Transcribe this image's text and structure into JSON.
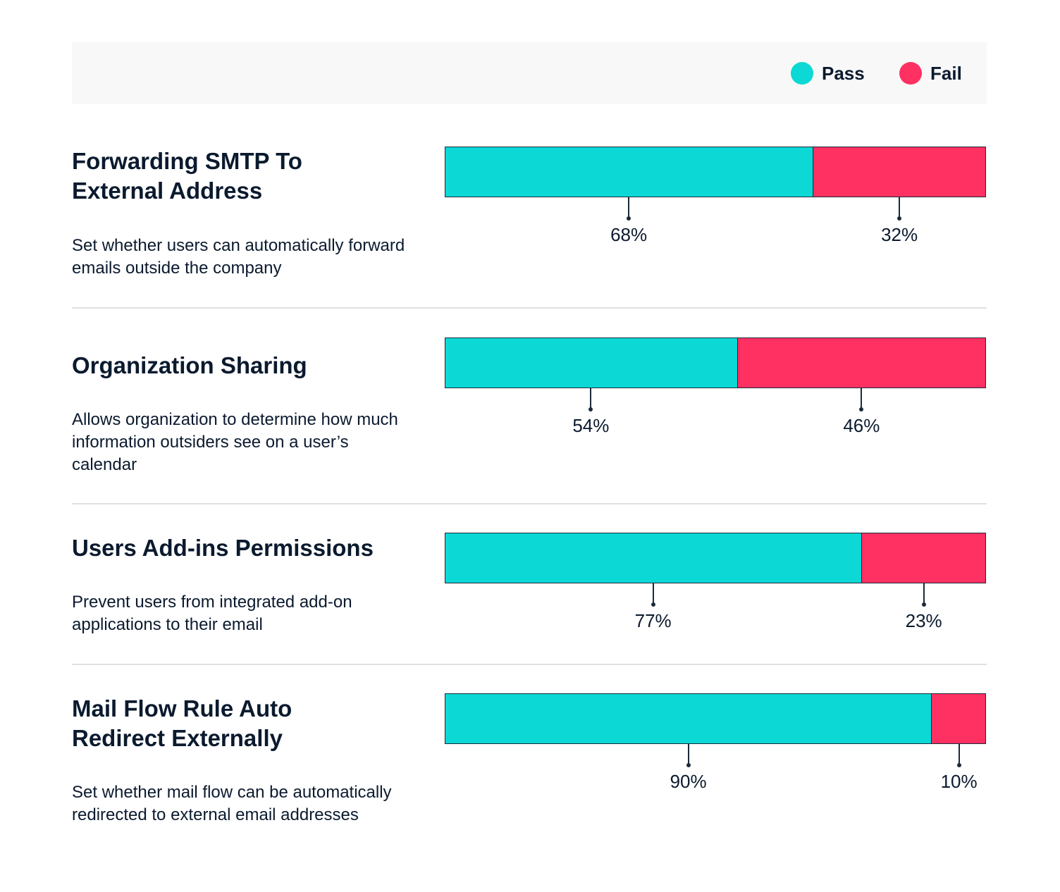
{
  "legend": {
    "pass_label": "Pass",
    "fail_label": "Fail",
    "pass_color": "#0cd8d5",
    "fail_color": "#ff3062"
  },
  "rows": [
    {
      "title_lines": [
        "Forwarding SMTP To",
        "External Address"
      ],
      "description": "Set whether users can automatically forward emails outside the company",
      "pass_label": "68%",
      "fail_label": "32%"
    },
    {
      "title_lines": [
        "Organization Sharing"
      ],
      "description": "Allows organization to determine how much information outsiders see on a user’s calendar",
      "pass_label": "54%",
      "fail_label": "46%"
    },
    {
      "title_lines": [
        "Users Add-ins Permissions"
      ],
      "description": "Prevent users from integrated add-on applications to their email",
      "pass_label": "77%",
      "fail_label": "23%"
    },
    {
      "title_lines": [
        "Mail Flow Rule Auto",
        "Redirect Externally"
      ],
      "description": "Set whether mail flow can be automatically redirected to external email addresses",
      "pass_label": "90%",
      "fail_label": "10%"
    }
  ],
  "chart_data": {
    "type": "bar",
    "orientation": "horizontal",
    "stacked": true,
    "categories": [
      "Forwarding SMTP To External Address",
      "Organization Sharing",
      "Users Add-ins Permissions",
      "Mail Flow Rule Auto Redirect Externally"
    ],
    "series": [
      {
        "name": "Pass",
        "values": [
          68,
          54,
          77,
          90
        ]
      },
      {
        "name": "Fail",
        "values": [
          32,
          46,
          23,
          10
        ]
      }
    ],
    "xlim": [
      0,
      100
    ],
    "grid": false,
    "legend_position": "top-right"
  }
}
